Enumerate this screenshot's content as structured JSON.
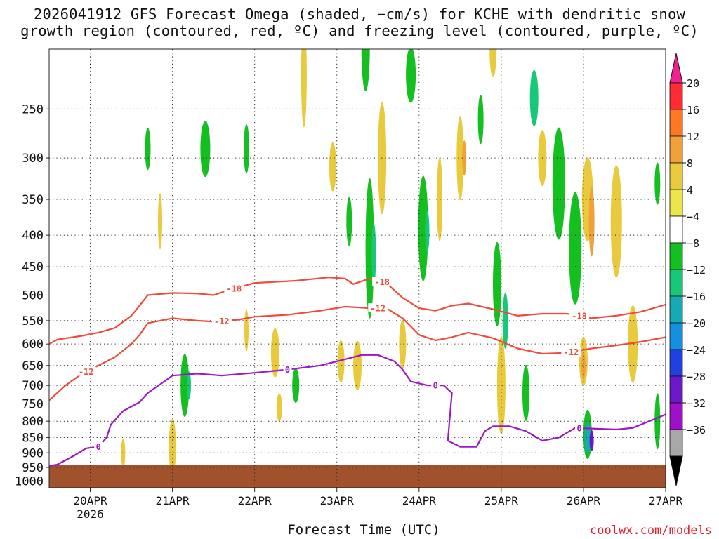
{
  "title_line1": "2026041912 GFS Forecast Omega (shaded, −cm/s) for KCHE with dendritic snow",
  "title_line2": "growth region (contoured, red, ºC) and freezing level (contoured, purple, ºC)",
  "credit": "coolwx.com/models",
  "chart_data": {
    "type": "heatmap",
    "xlabel": "Forecast Time (UTC)",
    "x_ticks": [
      "20APR",
      "21APR",
      "22APR",
      "23APR",
      "24APR",
      "25APR",
      "26APR",
      "27APR"
    ],
    "x_subtick": "2026",
    "x_range_days": [
      19.5,
      27.0
    ],
    "y_ticks": [
      250,
      300,
      350,
      400,
      450,
      500,
      550,
      600,
      650,
      700,
      750,
      800,
      850,
      900,
      950,
      1000
    ],
    "y_range_hpa": [
      200,
      1025
    ],
    "y_scale": "log-pressure",
    "grid": "dotted",
    "colorbar": {
      "labels": [
        "20",
        "16",
        "12",
        "8",
        "4",
        "−4",
        "−8",
        "−12",
        "−16",
        "−20",
        "−24",
        "−28",
        "−32",
        "−36"
      ],
      "colors": [
        "#f0208c",
        "#ff2c33",
        "#ff7722",
        "#f0a23a",
        "#e8ca3c",
        "#ebe64a",
        "#ffffff",
        "#13c020",
        "#18c87a",
        "#16aab4",
        "#1590e0",
        "#2040e0",
        "#6a18c8",
        "#a010c8",
        "#a8a8a8",
        "#000000"
      ]
    },
    "ground_color": "#a0522d",
    "series": [
      {
        "name": "-18",
        "color": "#f04a3a",
        "x": [
          19.5,
          19.6,
          19.9,
          20.1,
          20.3,
          20.5,
          20.6,
          20.7,
          21.0,
          21.3,
          21.5,
          21.7,
          22.0,
          22.5,
          22.9,
          23.1,
          23.2,
          23.4,
          23.6,
          23.8,
          24.0,
          24.2,
          24.4,
          24.6,
          24.9,
          25.2,
          25.5,
          25.8,
          26.1,
          26.4,
          26.7,
          27.0
        ],
        "y": [
          600,
          590,
          582,
          575,
          565,
          540,
          520,
          500,
          496,
          497,
          500,
          490,
          478,
          474,
          468,
          470,
          480,
          470,
          478,
          505,
          525,
          530,
          520,
          516,
          527,
          540,
          536,
          536,
          545,
          540,
          532,
          518
        ]
      },
      {
        "name": "-12",
        "color": "#f04a3a",
        "x": [
          19.5,
          19.7,
          19.9,
          20.1,
          20.3,
          20.5,
          20.6,
          20.7,
          21.0,
          21.3,
          21.5,
          21.8,
          22.0,
          22.4,
          22.8,
          23.1,
          23.4,
          23.6,
          23.8,
          24.0,
          24.2,
          24.4,
          24.6,
          24.9,
          25.2,
          25.5,
          25.8,
          26.1,
          26.4,
          26.7,
          27.0
        ],
        "y": [
          740,
          700,
          670,
          650,
          630,
          600,
          580,
          555,
          545,
          550,
          552,
          548,
          542,
          538,
          530,
          522,
          525,
          525,
          545,
          580,
          592,
          585,
          575,
          587,
          610,
          622,
          620,
          610,
          603,
          595,
          585
        ]
      },
      {
        "name": "0",
        "color": "#9a18c8",
        "x": [
          19.5,
          19.6,
          19.8,
          19.95,
          20.1,
          20.2,
          20.25,
          20.4,
          20.6,
          20.7,
          20.9,
          21.0,
          21.3,
          21.6,
          22.0,
          22.4,
          22.8,
          23.1,
          23.3,
          23.5,
          23.7,
          23.8,
          23.9,
          24.1,
          24.3,
          24.4,
          24.35,
          24.5,
          24.7,
          24.8,
          24.9,
          25.1,
          25.3,
          25.5,
          25.7,
          25.9,
          26.1,
          26.4,
          26.6,
          26.8,
          27.0
        ],
        "y": [
          945,
          940,
          910,
          885,
          880,
          850,
          810,
          770,
          745,
          720,
          690,
          675,
          670,
          675,
          668,
          660,
          650,
          635,
          625,
          625,
          640,
          660,
          690,
          700,
          700,
          720,
          860,
          880,
          880,
          830,
          815,
          815,
          830,
          860,
          850,
          820,
          822,
          825,
          820,
          800,
          780
        ]
      }
    ]
  }
}
